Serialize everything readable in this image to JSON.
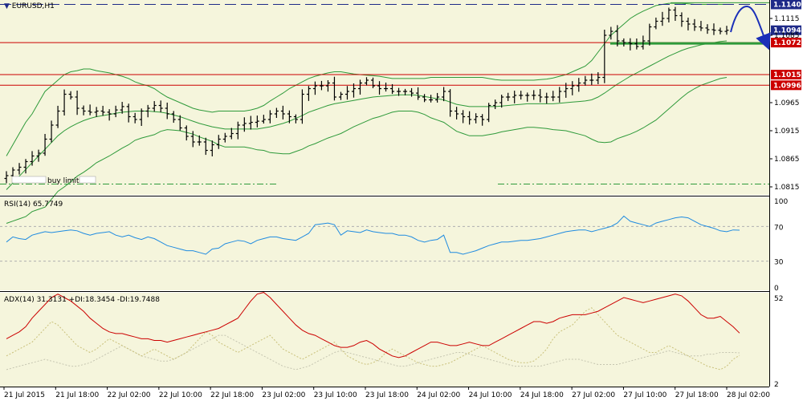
{
  "chart_data": {
    "type": "candlestick",
    "symbol_label": "EURUSD,H1",
    "colors": {
      "background": "#f5f5dc",
      "grid": "#d8d8d8",
      "bollinger": "#2e9a3a",
      "horizontal_red": "#cc0000",
      "dashed_blue": "#1e2a88",
      "green_level": "#2e9a3a",
      "arrow": "#1a2fb8",
      "rsi": "#1f8be0",
      "adx": "#cc0000",
      "plus_di": "#c9c07a",
      "minus_di": "#c5c5b0",
      "candle": "#000000",
      "level_box_blue": "#1e2a88",
      "level_box_red": "#cc0000"
    },
    "price_axis": {
      "ymin": 1.0805,
      "ymax": 1.1145,
      "ticks": [
        "1.1115",
        "1.1085",
        "1.0965",
        "1.0915",
        "1.0865",
        "1.0815"
      ]
    },
    "levels": [
      {
        "label": "1.1140",
        "value": 1.114,
        "style": "dashed_blue",
        "box": "blue"
      },
      {
        "label": "1.1094",
        "value": 1.1094,
        "style": "none",
        "box": "blue"
      },
      {
        "label": "1.1072",
        "value": 1.1072,
        "style": "solid_red",
        "box": "red"
      },
      {
        "label": "1.1015",
        "value": 1.1015,
        "style": "solid_red",
        "box": "red"
      },
      {
        "label": "1.0996",
        "value": 1.0996,
        "style": "solid_red",
        "box": "red"
      }
    ],
    "buy_limit_label": "buy limit",
    "x_labels": [
      "21 Jul 2015",
      "21 Jul 18:00",
      "22 Jul 02:00",
      "22 Jul 10:00",
      "22 Jul 18:00",
      "23 Jul 02:00",
      "23 Jul 10:00",
      "23 Jul 18:00",
      "24 Jul 02:00",
      "24 Jul 10:00",
      "24 Jul 18:00",
      "27 Jul 02:00",
      "27 Jul 10:00",
      "27 Jul 18:00",
      "28 Jul 02:00"
    ],
    "closes": [
      1.0835,
      1.0845,
      1.085,
      1.086,
      1.087,
      1.0875,
      1.09,
      1.0925,
      1.095,
      1.098,
      1.0975,
      1.0955,
      1.095,
      1.0948,
      1.095,
      1.0948,
      1.0945,
      1.0952,
      1.0958,
      1.094,
      1.0935,
      1.095,
      1.0955,
      1.096,
      1.0955,
      1.0945,
      1.0935,
      1.092,
      1.0905,
      1.0895,
      1.0895,
      1.088,
      1.089,
      1.09,
      1.0905,
      1.091,
      1.0925,
      1.0928,
      1.093,
      1.0932,
      1.0935,
      1.0945,
      1.095,
      1.0945,
      1.094,
      1.0935,
      1.098,
      1.099,
      1.0995,
      1.0995,
      1.1,
      1.0975,
      1.098,
      1.0985,
      1.099,
      1.1,
      1.1005,
      1.0995,
      1.099,
      1.099,
      1.0985,
      1.0985,
      1.0985,
      1.0982,
      1.0975,
      1.097,
      1.097,
      1.0975,
      1.0985,
      1.095,
      1.0945,
      1.094,
      1.0935,
      1.094,
      1.0935,
      1.096,
      1.0965,
      1.0975,
      1.0975,
      1.0978,
      1.0978,
      1.0978,
      1.0978,
      1.0975,
      1.0975,
      1.0975,
      1.0985,
      1.099,
      1.0995,
      1.1,
      1.1005,
      1.1005,
      1.101,
      1.1085,
      1.1092,
      1.1075,
      1.1072,
      1.107,
      1.1065,
      1.1075,
      1.11,
      1.111,
      1.1115,
      1.113,
      1.112,
      1.111,
      1.1105,
      1.11,
      1.1098,
      1.1095,
      1.1094,
      1.1092,
      1.1094
    ],
    "bb_upper": [
      1.087,
      1.089,
      1.091,
      1.093,
      1.0945,
      1.0965,
      1.0985,
      1.0995,
      1.1005,
      1.1015,
      1.102,
      1.1022,
      1.1025,
      1.1025,
      1.1022,
      1.102,
      1.1018,
      1.1015,
      1.1012,
      1.1008,
      1.1002,
      1.0998,
      1.0995,
      1.099,
      1.0982,
      1.0975,
      1.097,
      1.0965,
      1.096,
      1.0955,
      1.0952,
      1.095,
      1.0948,
      1.095,
      1.095,
      1.095,
      1.095,
      1.095,
      1.0952,
      1.0955,
      1.096,
      1.0968,
      1.0975,
      1.0982,
      1.099,
      1.0996,
      1.1002,
      1.1008,
      1.1012,
      1.1015,
      1.1018,
      1.102,
      1.102,
      1.1018,
      1.1016,
      1.1015,
      1.1014,
      1.1013,
      1.1012,
      1.101,
      1.1008,
      1.1008,
      1.1008,
      1.1008,
      1.1008,
      1.1008,
      1.101,
      1.101,
      1.101,
      1.101,
      1.101,
      1.101,
      1.101,
      1.101,
      1.101,
      1.1008,
      1.1006,
      1.1005,
      1.1005,
      1.1005,
      1.1005,
      1.1005,
      1.1005,
      1.1006,
      1.1007,
      1.1009,
      1.1012,
      1.1015,
      1.102,
      1.1025,
      1.103,
      1.104,
      1.1055,
      1.107,
      1.1085,
      1.1095,
      1.1105,
      1.1115,
      1.1122,
      1.1128,
      1.1133,
      1.1138,
      1.114,
      1.1142,
      1.1142,
      1.1142,
      1.1141,
      1.114,
      1.114,
      1.114,
      1.114,
      1.114,
      1.114
    ],
    "bb_mid": [
      1.081,
      1.0822,
      1.0834,
      1.0846,
      1.0858,
      1.087,
      1.0882,
      1.0894,
      1.0906,
      1.0915,
      1.0922,
      1.0928,
      1.0933,
      1.0937,
      1.094,
      1.0942,
      1.0944,
      1.0946,
      1.0948,
      1.0949,
      1.095,
      1.095,
      1.095,
      1.0949,
      1.0948,
      1.0946,
      1.0943,
      1.094,
      1.0936,
      1.0932,
      1.0928,
      1.0925,
      1.0922,
      1.092,
      1.0918,
      1.0918,
      1.0918,
      1.0918,
      1.0918,
      1.0918,
      1.092,
      1.0922,
      1.0925,
      1.0928,
      1.0932,
      1.0937,
      1.0942,
      1.0948,
      1.0952,
      1.0956,
      1.096,
      1.0963,
      1.0965,
      1.0967,
      1.0969,
      1.0971,
      1.0973,
      1.0975,
      1.0976,
      1.0977,
      1.0978,
      1.0979,
      1.0979,
      1.0979,
      1.0978,
      1.0976,
      1.0974,
      1.0972,
      1.097,
      1.0966,
      1.0962,
      1.096,
      1.0958,
      1.0958,
      1.0958,
      1.0958,
      1.0958,
      1.0959,
      1.096,
      1.0961,
      1.0962,
      1.0963,
      1.0963,
      1.0963,
      1.0963,
      1.0963,
      1.0964,
      1.0965,
      1.0966,
      1.0967,
      1.0968,
      1.097,
      1.0975,
      1.0982,
      1.099,
      1.0998,
      1.1005,
      1.1012,
      1.1018,
      1.1024,
      1.103,
      1.1036,
      1.1042,
      1.1048,
      1.1053,
      1.1058,
      1.1062,
      1.1065,
      1.1068,
      1.107,
      1.1072,
      1.1074,
      1.1075
    ],
    "bb_lower": [
      1.075,
      1.0754,
      1.0758,
      1.0762,
      1.0771,
      1.0775,
      1.0779,
      1.0793,
      1.0807,
      1.0815,
      1.0824,
      1.0834,
      1.0841,
      1.0849,
      1.0858,
      1.0864,
      1.087,
      1.0877,
      1.0884,
      1.089,
      1.0898,
      1.0902,
      1.0905,
      1.0908,
      1.0914,
      1.0917,
      1.0916,
      1.0915,
      1.0912,
      1.0909,
      1.0904,
      1.09,
      1.0896,
      1.089,
      1.0886,
      1.0886,
      1.0886,
      1.0886,
      1.0884,
      1.0881,
      1.088,
      1.0876,
      1.0875,
      1.0874,
      1.0874,
      1.0878,
      1.0882,
      1.0888,
      1.0892,
      1.0897,
      1.0902,
      1.0906,
      1.091,
      1.0916,
      1.0922,
      1.0927,
      1.0932,
      1.0937,
      1.094,
      1.0944,
      1.0948,
      1.095,
      1.095,
      1.095,
      1.0948,
      1.0944,
      1.0938,
      1.0934,
      1.093,
      1.0922,
      1.0914,
      1.091,
      1.0906,
      1.0906,
      1.0906,
      1.0908,
      1.091,
      1.0913,
      1.0915,
      1.0917,
      1.0919,
      1.0921,
      1.0921,
      1.092,
      1.0919,
      1.0917,
      1.0916,
      1.0915,
      1.0912,
      1.0909,
      1.0906,
      1.09,
      1.0895,
      1.0894,
      1.0895,
      1.0901,
      1.0905,
      1.0909,
      1.0914,
      1.092,
      1.0927,
      1.0934,
      1.0944,
      1.0954,
      1.0964,
      1.0974,
      1.0983,
      1.099,
      1.0996,
      1.1,
      1.1004,
      1.1008,
      1.101
    ],
    "rsi": {
      "label": "RSI(14) 65.7749",
      "ymin": 0,
      "ymax": 100,
      "ticks": [
        "100",
        "70",
        "30",
        "0"
      ],
      "levels": [
        70,
        30
      ],
      "values": [
        52,
        58,
        56,
        55,
        60,
        62,
        64,
        63,
        64,
        65,
        66,
        65,
        62,
        60,
        62,
        63,
        64,
        60,
        58,
        60,
        57,
        55,
        58,
        56,
        52,
        48,
        46,
        44,
        42,
        42,
        40,
        38,
        44,
        45,
        50,
        52,
        54,
        53,
        50,
        54,
        56,
        58,
        58,
        56,
        55,
        54,
        58,
        62,
        72,
        73,
        74,
        72,
        60,
        65,
        64,
        63,
        66,
        64,
        63,
        62,
        62,
        60,
        60,
        58,
        54,
        52,
        54,
        55,
        60,
        40,
        40,
        38,
        40,
        42,
        45,
        48,
        50,
        52,
        52,
        53,
        54,
        54,
        55,
        56,
        58,
        60,
        62,
        64,
        65,
        66,
        66,
        64,
        66,
        68,
        70,
        74,
        82,
        76,
        74,
        72,
        70,
        74,
        76,
        78,
        80,
        81,
        80,
        76,
        72,
        70,
        68,
        65,
        64,
        66,
        65.77
      ]
    },
    "adx": {
      "label": "ADX(14) 31.3131 +DI:18.3454 -DI:19.7488",
      "ymin": 2,
      "ymax": 52,
      "ticks": [
        "52",
        "2"
      ],
      "adx_values": [
        28,
        30,
        32,
        35,
        40,
        44,
        48,
        52,
        54,
        52,
        50,
        47,
        44,
        40,
        37,
        34,
        32,
        31,
        31,
        30,
        29,
        28,
        28,
        27,
        27,
        26,
        27,
        28,
        29,
        30,
        31,
        32,
        33,
        34,
        36,
        38,
        40,
        45,
        50,
        54,
        55,
        52,
        48,
        44,
        40,
        36,
        33,
        31,
        30,
        28,
        26,
        24,
        23,
        23,
        24,
        26,
        27,
        25,
        22,
        20,
        18,
        17,
        18,
        20,
        22,
        24,
        26,
        26,
        25,
        24,
        24,
        25,
        26,
        25,
        24,
        24,
        26,
        28,
        30,
        32,
        34,
        36,
        38,
        38,
        37,
        38,
        40,
        41,
        42,
        42,
        42,
        43,
        44,
        46,
        48,
        50,
        52,
        51,
        50,
        49,
        50,
        51,
        52,
        53,
        54,
        53,
        50,
        46,
        42,
        40,
        40,
        41,
        38,
        35,
        31.3
      ],
      "plus_di_values": [
        18,
        20,
        22,
        24,
        26,
        30,
        34,
        38,
        36,
        32,
        28,
        24,
        22,
        20,
        22,
        25,
        28,
        26,
        24,
        22,
        20,
        18,
        20,
        22,
        20,
        18,
        16,
        18,
        20,
        24,
        28,
        32,
        30,
        26,
        24,
        22,
        20,
        22,
        24,
        26,
        28,
        30,
        26,
        22,
        20,
        18,
        16,
        18,
        20,
        22,
        24,
        26,
        22,
        18,
        16,
        14,
        13,
        14,
        16,
        20,
        22,
        20,
        18,
        16,
        14,
        13,
        12,
        12,
        13,
        14,
        16,
        18,
        20,
        22,
        24,
        22,
        20,
        18,
        16,
        15,
        14,
        14,
        15,
        18,
        22,
        28,
        32,
        34,
        36,
        40,
        44,
        46,
        42,
        38,
        34,
        30,
        28,
        26,
        24,
        22,
        20,
        20,
        22,
        24,
        22,
        20,
        18,
        16,
        14,
        12,
        11,
        10,
        12,
        16,
        18.35
      ],
      "minus_di_values": [
        10,
        11,
        12,
        13,
        14,
        15,
        16,
        15,
        14,
        13,
        12,
        12,
        13,
        14,
        16,
        18,
        20,
        22,
        24,
        22,
        20,
        18,
        17,
        16,
        15,
        15,
        16,
        18,
        20,
        22,
        24,
        26,
        28,
        30,
        30,
        28,
        26,
        24,
        22,
        20,
        18,
        16,
        14,
        12,
        11,
        10,
        11,
        12,
        14,
        16,
        18,
        20,
        21,
        20,
        19,
        18,
        17,
        16,
        15,
        14,
        13,
        12,
        12,
        13,
        14,
        15,
        16,
        17,
        18,
        19,
        20,
        20,
        19,
        18,
        17,
        16,
        15,
        14,
        13,
        12,
        12,
        12,
        12,
        12,
        13,
        14,
        15,
        16,
        16,
        16,
        15,
        14,
        13,
        13,
        13,
        13,
        14,
        15,
        16,
        17,
        18,
        19,
        20,
        21,
        20,
        19,
        18,
        18,
        18,
        19,
        19,
        20,
        20,
        20,
        19.75
      ]
    }
  }
}
